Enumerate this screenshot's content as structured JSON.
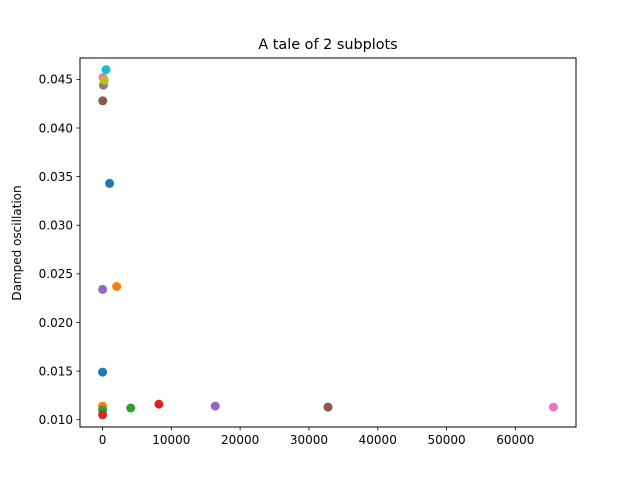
{
  "chart_data": {
    "type": "scatter",
    "title": "A tale of 2 subplots",
    "xlabel": "",
    "ylabel": "Damped oscillation",
    "xlim": [
      -3276,
      68813
    ],
    "ylim": [
      0.00925,
      0.0472
    ],
    "xticks": [
      0,
      10000,
      20000,
      30000,
      40000,
      50000,
      60000
    ],
    "xtick_labels": [
      "0",
      "10000",
      "20000",
      "30000",
      "40000",
      "50000",
      "60000"
    ],
    "yticks": [
      0.01,
      0.015,
      0.02,
      0.025,
      0.03,
      0.035,
      0.04,
      0.045
    ],
    "ytick_labels": [
      "0.010",
      "0.015",
      "0.020",
      "0.025",
      "0.030",
      "0.035",
      "0.040",
      "0.045"
    ],
    "grid": false,
    "points": [
      {
        "x": 1,
        "y": 0.0149,
        "color": "#1f77b4"
      },
      {
        "x": 2,
        "y": 0.0114,
        "color": "#ff7f0e"
      },
      {
        "x": 4,
        "y": 0.011,
        "color": "#2ca02c"
      },
      {
        "x": 8,
        "y": 0.0105,
        "color": "#d62728"
      },
      {
        "x": 16,
        "y": 0.0234,
        "color": "#9467bd"
      },
      {
        "x": 32,
        "y": 0.0428,
        "color": "#8c564b"
      },
      {
        "x": 64,
        "y": 0.0452,
        "color": "#e377c2"
      },
      {
        "x": 128,
        "y": 0.0444,
        "color": "#7f7f7f"
      },
      {
        "x": 256,
        "y": 0.0449,
        "color": "#bcbd22"
      },
      {
        "x": 512,
        "y": 0.046,
        "color": "#17becf"
      },
      {
        "x": 1024,
        "y": 0.0343,
        "color": "#1f77b4"
      },
      {
        "x": 2048,
        "y": 0.0237,
        "color": "#ff7f0e"
      },
      {
        "x": 4096,
        "y": 0.0112,
        "color": "#2ca02c"
      },
      {
        "x": 8192,
        "y": 0.0116,
        "color": "#d62728"
      },
      {
        "x": 16384,
        "y": 0.0114,
        "color": "#9467bd"
      },
      {
        "x": 32768,
        "y": 0.0113,
        "color": "#8c564b"
      },
      {
        "x": 65536,
        "y": 0.0113,
        "color": "#e377c2"
      }
    ]
  }
}
